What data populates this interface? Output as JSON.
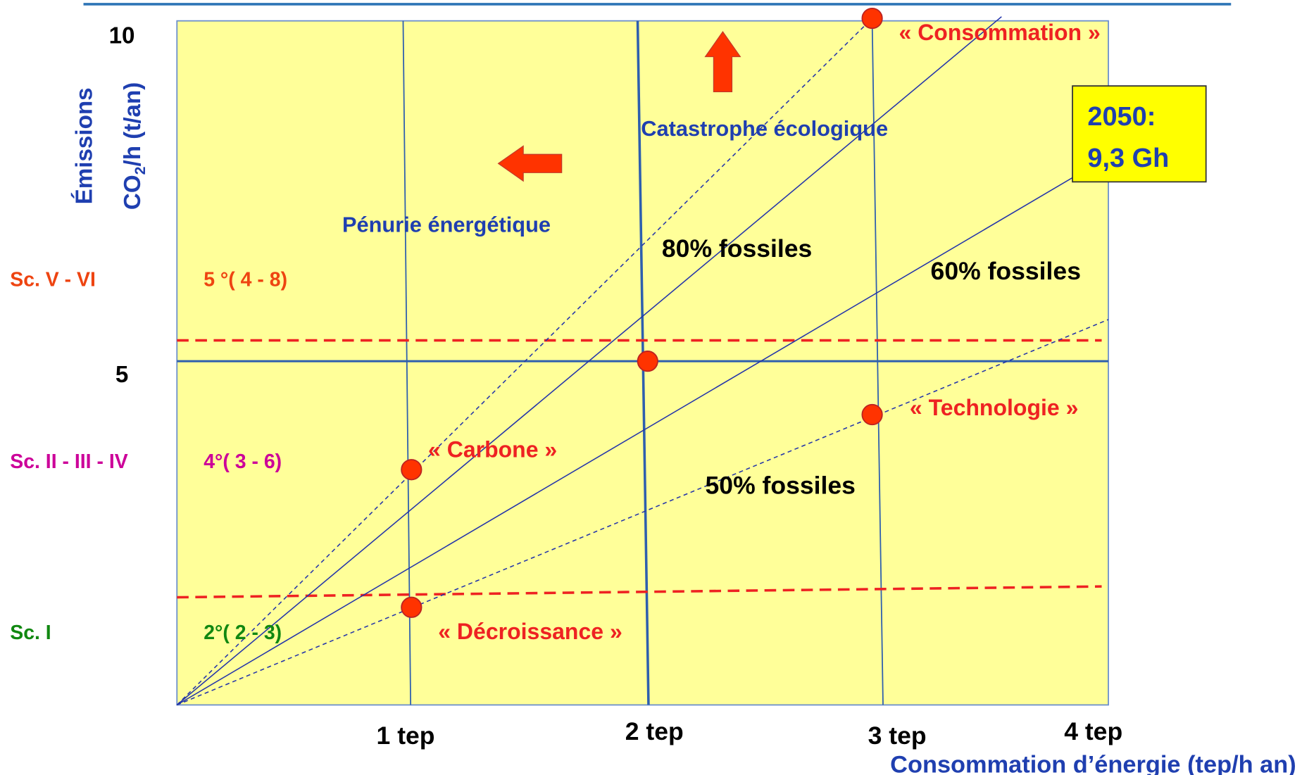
{
  "y_axis": {
    "title": "Émissions",
    "unit_a": "CO",
    "unit_sub": "2",
    "unit_b": "/h (t/an)",
    "tick_10": "10",
    "tick_5": "5"
  },
  "x_axis": {
    "title": "Consommation d’énergie (tep/h an)",
    "ticks": [
      "1 tep",
      "2 tep",
      "3 tep",
      "4 tep"
    ]
  },
  "scenarios": [
    {
      "name": "Sc. V - VI",
      "warming": "5 °( 4 - 8)"
    },
    {
      "name": "Sc. II - III - IV",
      "warming": "4°( 3 - 6)"
    },
    {
      "name": "Sc. I",
      "warming": "2°( 2 - 3)"
    }
  ],
  "zones": {
    "shortage": "Pénurie énergétique",
    "catastrophe": "Catastrophe écologique"
  },
  "lines": {
    "l80": "80% fossiles",
    "l60": "60% fossiles",
    "l50": "50% fossiles"
  },
  "points": {
    "consumption": "« Consommation »",
    "technology": "« Technologie »",
    "carbon": "« Carbone »",
    "degrowth": "« Décroissance »"
  },
  "callout": {
    "line1": "2050:",
    "line2": "9,3 Gh"
  }
}
